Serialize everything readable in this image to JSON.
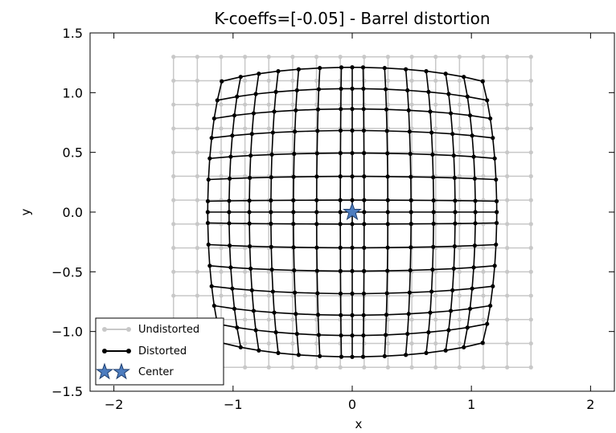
{
  "chart_data": {
    "type": "line",
    "title": "K-coeffs=[-0.05]   - Barrel distortion",
    "xlabel": "x",
    "ylabel": "y",
    "xlim": [
      -2.2,
      2.2
    ],
    "ylim": [
      -1.5,
      1.5
    ],
    "xticks": [
      -2,
      -1,
      0,
      1,
      2
    ],
    "xtick_labels": [
      "−2",
      "−1",
      "0",
      "1",
      "2"
    ],
    "yticks": [
      -1.5,
      -1.0,
      -0.5,
      0.0,
      0.5,
      1.0,
      1.5
    ],
    "ytick_labels": [
      "−1.5",
      "−1.0",
      "−0.5",
      "0.0",
      "0.5",
      "1.0",
      "1.5"
    ],
    "grid": false,
    "legend_placement": "lower-left",
    "model": {
      "k": -0.05,
      "center": [
        0,
        0
      ]
    },
    "series": [
      {
        "name": "Undistorted",
        "color": "#c8c8c8",
        "marker": "circle",
        "grid_x": [
          -1.5,
          -1.3,
          -1.1,
          -0.9,
          -0.7,
          -0.5,
          -0.3,
          -0.1,
          0.1,
          0.3,
          0.5,
          0.7,
          0.9,
          1.1,
          1.3,
          1.5
        ],
        "grid_y": [
          -1.3,
          -1.1,
          -0.9,
          -0.7,
          -0.5,
          -0.3,
          -0.1,
          0.1,
          0.3,
          0.5,
          0.7,
          0.9,
          1.1,
          1.3
        ]
      },
      {
        "name": "Distorted",
        "color": "#000000",
        "marker": "circle",
        "grid_x": [
          -1.33,
          -1.1,
          -0.9,
          -0.7,
          -0.5,
          -0.3,
          -0.1,
          0,
          0.1,
          0.3,
          0.5,
          0.7,
          0.9,
          1.1,
          1.33
        ],
        "grid_y": [
          -1.33,
          -1.1,
          -0.9,
          -0.7,
          -0.5,
          -0.3,
          -0.1,
          0,
          0.1,
          0.3,
          0.5,
          0.7,
          0.9,
          1.1,
          1.33
        ]
      },
      {
        "name": "Center",
        "color": "#4c7cbf",
        "marker": "star",
        "x": [
          0
        ],
        "y": [
          0
        ]
      }
    ]
  }
}
